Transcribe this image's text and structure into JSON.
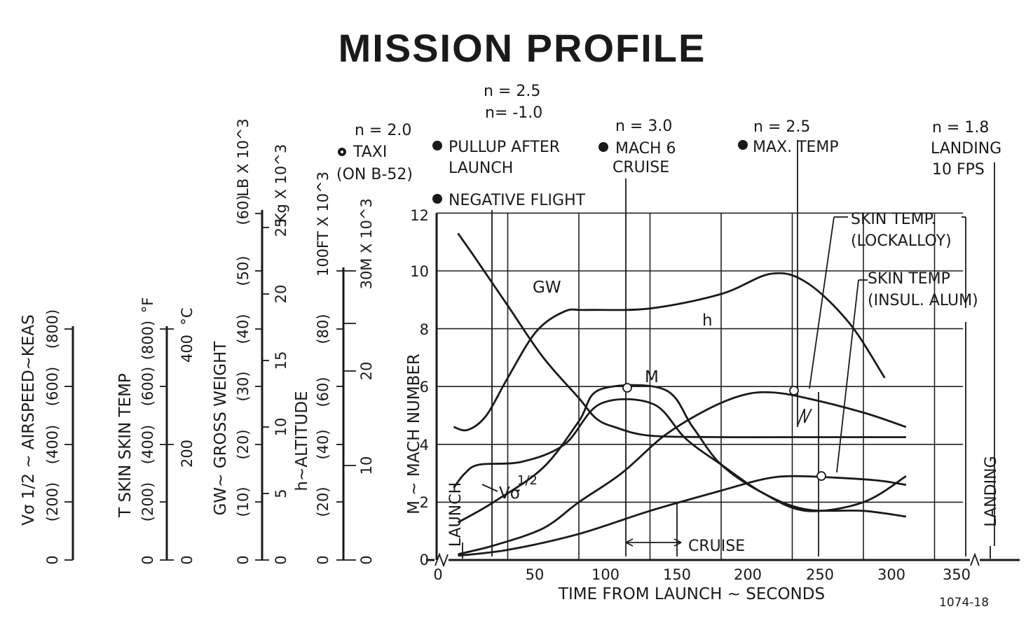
{
  "chart_data": {
    "type": "line",
    "title": "MISSION PROFILE",
    "xlabel": "TIME FROM LAUNCH ~ SECONDS",
    "ylabel": "M ~ MACH NUMBER",
    "x_ticks": [
      "0",
      "50",
      "100",
      "150",
      "200",
      "250",
      "300",
      "350"
    ],
    "y_ticks": [
      "0",
      "2",
      "4",
      "6",
      "8",
      "10",
      "12"
    ],
    "xlim": [
      0,
      380
    ],
    "ylim": [
      0,
      12
    ],
    "grid": true,
    "figure_id": "1074-18",
    "aux_axes": [
      {
        "label": "Vσ 1/2 ~ AIRSPEED~KEAS",
        "ticks": [
          "0",
          "(200)",
          "(400)",
          "(600)",
          "(800)"
        ]
      },
      {
        "label": "T SKIN  SKIN TEMP",
        "unit_left": "°F",
        "unit_right": "°C",
        "ticks_left": [
          "0",
          "(200)",
          "(400)",
          "(600)",
          "(800)"
        ],
        "ticks_right": [
          "0",
          "200",
          "400"
        ]
      },
      {
        "label": "GW~ GROSS WEIGHT",
        "unit_left": "LB X 10^3",
        "unit_right": "Kg X 10^3",
        "ticks_left": [
          "0",
          "(10)",
          "(20)",
          "(30)",
          "(40)",
          "(50)",
          "(60)"
        ],
        "ticks_right": [
          "0",
          "5",
          "10",
          "15",
          "20",
          "25"
        ]
      },
      {
        "label": "h~ALTITUDE",
        "unit_left": "FT X 10^3",
        "unit_right": "M X 10^3",
        "ticks_left": [
          "0",
          "(20)",
          "(40)",
          "(60)",
          "(80)",
          "100"
        ],
        "ticks_right": [
          "0",
          "10",
          "20",
          "30"
        ]
      }
    ],
    "series": [
      {
        "name": "GW",
        "x": [
          15,
          25,
          50,
          75,
          100,
          112,
          125,
          150,
          200,
          250,
          330
        ],
        "y": [
          11.3,
          10.6,
          8.8,
          7.0,
          5.6,
          4.9,
          4.6,
          4.3,
          4.25,
          4.25,
          4.25
        ]
      },
      {
        "name": "h",
        "x": [
          12,
          22,
          35,
          50,
          70,
          90,
          105,
          150,
          200,
          235,
          260,
          290,
          315
        ],
        "y": [
          4.6,
          4.5,
          5.0,
          6.3,
          7.9,
          8.6,
          8.65,
          8.7,
          9.2,
          9.9,
          9.6,
          8.2,
          6.3
        ]
      },
      {
        "name": "M",
        "x": [
          15,
          40,
          75,
          100,
          115,
          160,
          180,
          200,
          230,
          260,
          300,
          330
        ],
        "y": [
          1.3,
          2.0,
          3.2,
          4.8,
          5.9,
          5.9,
          4.6,
          3.3,
          2.3,
          1.75,
          1.7,
          1.5
        ]
      },
      {
        "name": "Vσ 1/2",
        "x": [
          12,
          20,
          30,
          60,
          90,
          115,
          152,
          175,
          200,
          230,
          260,
          300,
          330
        ],
        "y": [
          2.5,
          3.0,
          3.3,
          3.4,
          4.0,
          5.4,
          5.4,
          4.2,
          3.3,
          2.3,
          1.7,
          2.0,
          2.9
        ]
      },
      {
        "name": "SKIN TEMP. (LOCKALLOY)",
        "x": [
          15,
          40,
          75,
          100,
          130,
          160,
          190,
          215,
          235,
          260,
          300,
          330
        ],
        "y": [
          0.2,
          0.5,
          1.1,
          2.0,
          3.0,
          4.3,
          5.2,
          5.7,
          5.8,
          5.6,
          5.1,
          4.6
        ]
      },
      {
        "name": "SKIN TEMP (INSUL. ALUM)",
        "x": [
          15,
          50,
          100,
          150,
          200,
          230,
          250,
          280,
          310,
          330
        ],
        "y": [
          0.15,
          0.35,
          0.9,
          1.7,
          2.4,
          2.8,
          2.9,
          2.85,
          2.75,
          2.6
        ]
      }
    ],
    "series_labels": {
      "GW": "GW",
      "h": "h",
      "M": "M",
      "V": "Vσ",
      "V_sup": "1/2"
    },
    "annotations": [
      {
        "lines": [
          "n = 2.0",
          "TAXI",
          "(ON B-52)"
        ]
      },
      {
        "lines": [
          "n = 2.5",
          "n= -1.0"
        ]
      },
      {
        "lines": [
          "PULLUP AFTER",
          "LAUNCH"
        ]
      },
      {
        "lines": [
          "NEGATIVE FLIGHT"
        ]
      },
      {
        "lines": [
          "n = 3.0",
          "MACH 6",
          "CRUISE"
        ]
      },
      {
        "lines": [
          "n = 2.5",
          "MAX. TEMP"
        ]
      },
      {
        "lines": [
          "n = 1.8",
          "LANDING",
          "10 FPS"
        ]
      },
      {
        "lines": [
          "SKIN TEMP.",
          "(LOCKALLOY)"
        ]
      },
      {
        "lines": [
          "SKIN TEMP",
          "(INSUL. ALUM)"
        ]
      },
      {
        "lines": [
          "LAUNCH"
        ]
      },
      {
        "lines": [
          "LANDING"
        ]
      },
      {
        "lines": [
          "CRUISE"
        ]
      }
    ]
  }
}
